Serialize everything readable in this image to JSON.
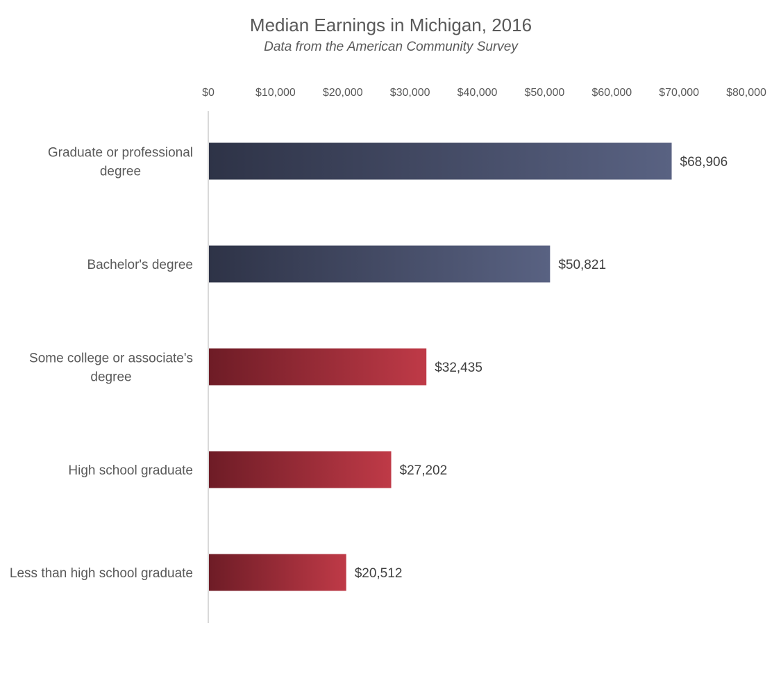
{
  "chart_data": {
    "type": "bar",
    "orientation": "horizontal",
    "title": "Median Earnings in Michigan, 2016",
    "subtitle": "Data from the American Community Survey",
    "xlabel": "",
    "ylabel": "",
    "xlim": [
      0,
      80000
    ],
    "x_ticks": [
      0,
      10000,
      20000,
      30000,
      40000,
      50000,
      60000,
      70000,
      80000
    ],
    "x_tick_labels": [
      "$0",
      "$10,000",
      "$20,000",
      "$30,000",
      "$40,000",
      "$50,000",
      "$60,000",
      "$70,000",
      "$80,000"
    ],
    "axis_position": "top",
    "grid": false,
    "legend": "none",
    "categories": [
      [
        "Graduate or professional",
        "degree"
      ],
      [
        "Bachelor's degree"
      ],
      [
        "Some college or associate's",
        "degree"
      ],
      [
        "High school graduate"
      ],
      [
        "Less than high school graduate"
      ]
    ],
    "values": [
      68906,
      50821,
      32435,
      27202,
      20512
    ],
    "data_labels": [
      "$68,906",
      "$50,821",
      "$32,435",
      "$27,202",
      "$20,512"
    ],
    "bar_groups": [
      "blue",
      "blue",
      "red",
      "red",
      "red"
    ],
    "colors": {
      "blue_start": "#2e3347",
      "blue_end": "#596282",
      "red_start": "#6e1c26",
      "red_end": "#bf3a47",
      "axis": "#d9d9d9"
    }
  }
}
